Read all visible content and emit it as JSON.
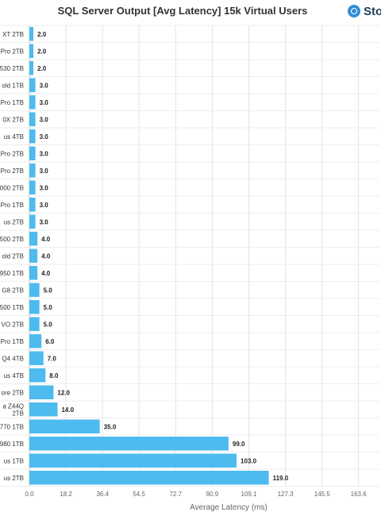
{
  "logo": {
    "text": "Sto",
    "icon": "storage-review-logo-icon"
  },
  "chart_data": {
    "type": "bar",
    "orientation": "horizontal",
    "title": "SQL Server Output [Avg Latency] 15k Virtual Users",
    "xlabel": "Average Latency (ms)",
    "ylabel": "",
    "xlim": [
      0,
      174
    ],
    "ticks": [
      "0.0",
      "18.2",
      "36.4",
      "54.5",
      "72.7",
      "90.9",
      "109.1",
      "127.3",
      "145.5",
      "163.6"
    ],
    "tick_values": [
      0,
      18.2,
      36.4,
      54.5,
      72.7,
      90.9,
      109.1,
      127.3,
      145.5,
      163.6
    ],
    "grid": true,
    "color": "#4dbbee",
    "categories": [
      "XT 2TB",
      "Pro 2TB",
      "530 2TB",
      "old 1TB",
      "Pro 1TB",
      "0X 2TB",
      "us 4TB",
      "Pro 2TB",
      "Pro 2TB",
      "000 2TB",
      "Pro 1TB",
      "us 2TB",
      "500 2TB",
      "old 2TB",
      "950 1TB",
      "G8 2TB",
      "500 1TB",
      "VO 2TB",
      "Pro 1TB",
      "Q4 4TB",
      "us 4TB",
      "ore 2TB",
      "a Z44Q\n2TB",
      "770 1TB",
      "980 1TB",
      "us 1TB",
      "us 2TB"
    ],
    "values": [
      2,
      2,
      2,
      3,
      3,
      3,
      3,
      3,
      3,
      3,
      3,
      3,
      4,
      4,
      4,
      5,
      5,
      5,
      6,
      7,
      8,
      12,
      14,
      35,
      99,
      103,
      119
    ],
    "value_labels": [
      "2.0",
      "2.0",
      "2.0",
      "3.0",
      "3.0",
      "3.0",
      "3.0",
      "3.0",
      "3.0",
      "3.0",
      "3.0",
      "3.0",
      "4.0",
      "4.0",
      "4.0",
      "5.0",
      "5.0",
      "5.0",
      "6.0",
      "7.0",
      "8.0",
      "12.0",
      "14.0",
      "35.0",
      "99.0",
      "103.0",
      "119.0"
    ]
  }
}
